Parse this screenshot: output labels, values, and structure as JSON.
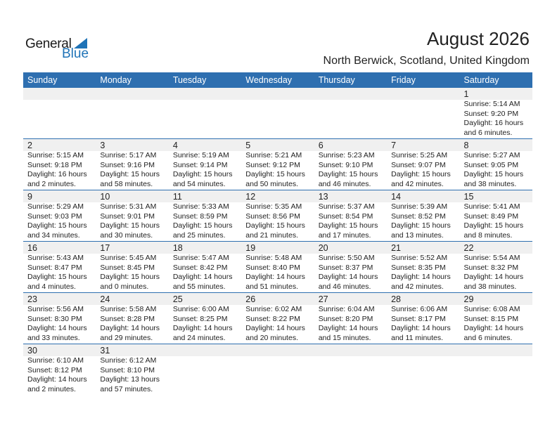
{
  "logo": {
    "line1": "General",
    "line2": "Blue"
  },
  "header": {
    "title": "August 2026",
    "location": "North Berwick, Scotland, United Kingdom"
  },
  "colors": {
    "accent": "#2e6fb0",
    "strip": "#f0f0f0",
    "logo_blue": "#1f73b7"
  },
  "days_of_week": [
    "Sunday",
    "Monday",
    "Tuesday",
    "Wednesday",
    "Thursday",
    "Friday",
    "Saturday"
  ],
  "weeks": [
    [
      null,
      null,
      null,
      null,
      null,
      null,
      {
        "day": "1",
        "sunrise": "Sunrise: 5:14 AM",
        "sunset": "Sunset: 9:20 PM",
        "daylight1": "Daylight: 16 hours",
        "daylight2": "and 6 minutes."
      }
    ],
    [
      {
        "day": "2",
        "sunrise": "Sunrise: 5:15 AM",
        "sunset": "Sunset: 9:18 PM",
        "daylight1": "Daylight: 16 hours",
        "daylight2": "and 2 minutes."
      },
      {
        "day": "3",
        "sunrise": "Sunrise: 5:17 AM",
        "sunset": "Sunset: 9:16 PM",
        "daylight1": "Daylight: 15 hours",
        "daylight2": "and 58 minutes."
      },
      {
        "day": "4",
        "sunrise": "Sunrise: 5:19 AM",
        "sunset": "Sunset: 9:14 PM",
        "daylight1": "Daylight: 15 hours",
        "daylight2": "and 54 minutes."
      },
      {
        "day": "5",
        "sunrise": "Sunrise: 5:21 AM",
        "sunset": "Sunset: 9:12 PM",
        "daylight1": "Daylight: 15 hours",
        "daylight2": "and 50 minutes."
      },
      {
        "day": "6",
        "sunrise": "Sunrise: 5:23 AM",
        "sunset": "Sunset: 9:10 PM",
        "daylight1": "Daylight: 15 hours",
        "daylight2": "and 46 minutes."
      },
      {
        "day": "7",
        "sunrise": "Sunrise: 5:25 AM",
        "sunset": "Sunset: 9:07 PM",
        "daylight1": "Daylight: 15 hours",
        "daylight2": "and 42 minutes."
      },
      {
        "day": "8",
        "sunrise": "Sunrise: 5:27 AM",
        "sunset": "Sunset: 9:05 PM",
        "daylight1": "Daylight: 15 hours",
        "daylight2": "and 38 minutes."
      }
    ],
    [
      {
        "day": "9",
        "sunrise": "Sunrise: 5:29 AM",
        "sunset": "Sunset: 9:03 PM",
        "daylight1": "Daylight: 15 hours",
        "daylight2": "and 34 minutes."
      },
      {
        "day": "10",
        "sunrise": "Sunrise: 5:31 AM",
        "sunset": "Sunset: 9:01 PM",
        "daylight1": "Daylight: 15 hours",
        "daylight2": "and 30 minutes."
      },
      {
        "day": "11",
        "sunrise": "Sunrise: 5:33 AM",
        "sunset": "Sunset: 8:59 PM",
        "daylight1": "Daylight: 15 hours",
        "daylight2": "and 25 minutes."
      },
      {
        "day": "12",
        "sunrise": "Sunrise: 5:35 AM",
        "sunset": "Sunset: 8:56 PM",
        "daylight1": "Daylight: 15 hours",
        "daylight2": "and 21 minutes."
      },
      {
        "day": "13",
        "sunrise": "Sunrise: 5:37 AM",
        "sunset": "Sunset: 8:54 PM",
        "daylight1": "Daylight: 15 hours",
        "daylight2": "and 17 minutes."
      },
      {
        "day": "14",
        "sunrise": "Sunrise: 5:39 AM",
        "sunset": "Sunset: 8:52 PM",
        "daylight1": "Daylight: 15 hours",
        "daylight2": "and 13 minutes."
      },
      {
        "day": "15",
        "sunrise": "Sunrise: 5:41 AM",
        "sunset": "Sunset: 8:49 PM",
        "daylight1": "Daylight: 15 hours",
        "daylight2": "and 8 minutes."
      }
    ],
    [
      {
        "day": "16",
        "sunrise": "Sunrise: 5:43 AM",
        "sunset": "Sunset: 8:47 PM",
        "daylight1": "Daylight: 15 hours",
        "daylight2": "and 4 minutes."
      },
      {
        "day": "17",
        "sunrise": "Sunrise: 5:45 AM",
        "sunset": "Sunset: 8:45 PM",
        "daylight1": "Daylight: 15 hours",
        "daylight2": "and 0 minutes."
      },
      {
        "day": "18",
        "sunrise": "Sunrise: 5:47 AM",
        "sunset": "Sunset: 8:42 PM",
        "daylight1": "Daylight: 14 hours",
        "daylight2": "and 55 minutes."
      },
      {
        "day": "19",
        "sunrise": "Sunrise: 5:48 AM",
        "sunset": "Sunset: 8:40 PM",
        "daylight1": "Daylight: 14 hours",
        "daylight2": "and 51 minutes."
      },
      {
        "day": "20",
        "sunrise": "Sunrise: 5:50 AM",
        "sunset": "Sunset: 8:37 PM",
        "daylight1": "Daylight: 14 hours",
        "daylight2": "and 46 minutes."
      },
      {
        "day": "21",
        "sunrise": "Sunrise: 5:52 AM",
        "sunset": "Sunset: 8:35 PM",
        "daylight1": "Daylight: 14 hours",
        "daylight2": "and 42 minutes."
      },
      {
        "day": "22",
        "sunrise": "Sunrise: 5:54 AM",
        "sunset": "Sunset: 8:32 PM",
        "daylight1": "Daylight: 14 hours",
        "daylight2": "and 38 minutes."
      }
    ],
    [
      {
        "day": "23",
        "sunrise": "Sunrise: 5:56 AM",
        "sunset": "Sunset: 8:30 PM",
        "daylight1": "Daylight: 14 hours",
        "daylight2": "and 33 minutes."
      },
      {
        "day": "24",
        "sunrise": "Sunrise: 5:58 AM",
        "sunset": "Sunset: 8:28 PM",
        "daylight1": "Daylight: 14 hours",
        "daylight2": "and 29 minutes."
      },
      {
        "day": "25",
        "sunrise": "Sunrise: 6:00 AM",
        "sunset": "Sunset: 8:25 PM",
        "daylight1": "Daylight: 14 hours",
        "daylight2": "and 24 minutes."
      },
      {
        "day": "26",
        "sunrise": "Sunrise: 6:02 AM",
        "sunset": "Sunset: 8:22 PM",
        "daylight1": "Daylight: 14 hours",
        "daylight2": "and 20 minutes."
      },
      {
        "day": "27",
        "sunrise": "Sunrise: 6:04 AM",
        "sunset": "Sunset: 8:20 PM",
        "daylight1": "Daylight: 14 hours",
        "daylight2": "and 15 minutes."
      },
      {
        "day": "28",
        "sunrise": "Sunrise: 6:06 AM",
        "sunset": "Sunset: 8:17 PM",
        "daylight1": "Daylight: 14 hours",
        "daylight2": "and 11 minutes."
      },
      {
        "day": "29",
        "sunrise": "Sunrise: 6:08 AM",
        "sunset": "Sunset: 8:15 PM",
        "daylight1": "Daylight: 14 hours",
        "daylight2": "and 6 minutes."
      }
    ],
    [
      {
        "day": "30",
        "sunrise": "Sunrise: 6:10 AM",
        "sunset": "Sunset: 8:12 PM",
        "daylight1": "Daylight: 14 hours",
        "daylight2": "and 2 minutes."
      },
      {
        "day": "31",
        "sunrise": "Sunrise: 6:12 AM",
        "sunset": "Sunset: 8:10 PM",
        "daylight1": "Daylight: 13 hours",
        "daylight2": "and 57 minutes."
      },
      null,
      null,
      null,
      null,
      null
    ]
  ]
}
